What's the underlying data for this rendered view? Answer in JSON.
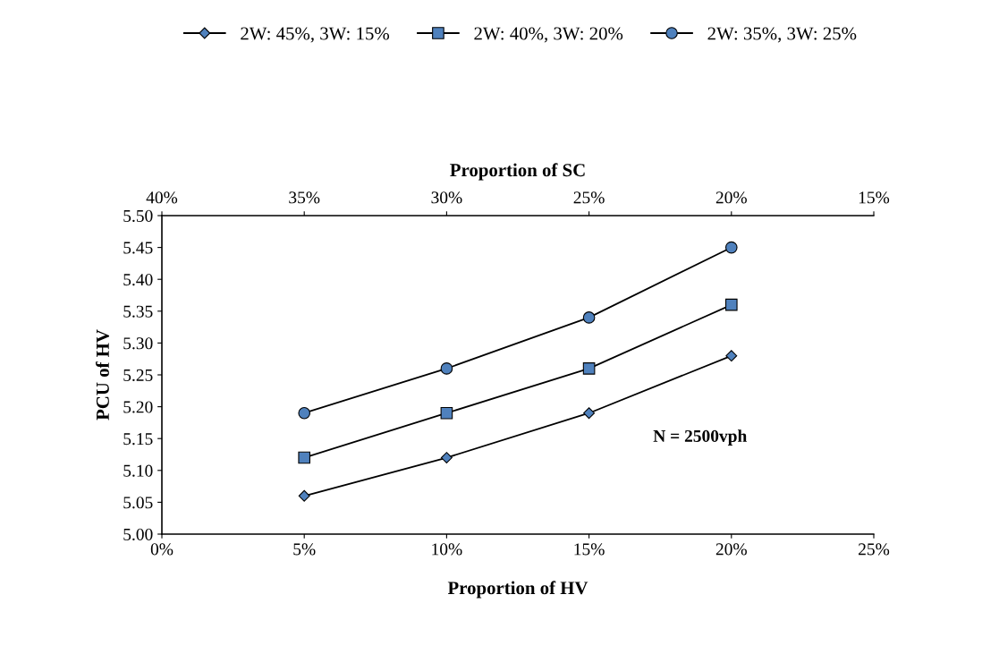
{
  "chart_data": {
    "type": "line",
    "xlabel": "Proportion of HV",
    "ylabel": "PCU of HV",
    "x2label": "Proportion of SC",
    "x": [
      5,
      10,
      15,
      20
    ],
    "series": [
      {
        "name": "2W: 45%, 3W: 15%",
        "color": "#4f81bd",
        "marker": "diamond",
        "values": [
          5.06,
          5.12,
          5.19,
          5.28
        ]
      },
      {
        "name": "2W: 40%, 3W: 20%",
        "color": "#4f81bd",
        "marker": "square",
        "values": [
          5.12,
          5.19,
          5.26,
          5.36
        ]
      },
      {
        "name": "2W: 35%, 3W: 25%",
        "color": "#4f81bd",
        "marker": "circle",
        "values": [
          5.19,
          5.26,
          5.34,
          5.45
        ]
      }
    ],
    "xlim": [
      0,
      25
    ],
    "xticks": [
      {
        "value": 0,
        "label": "0%"
      },
      {
        "value": 5,
        "label": "5%"
      },
      {
        "value": 10,
        "label": "10%"
      },
      {
        "value": 15,
        "label": "15%"
      },
      {
        "value": 20,
        "label": "20%"
      },
      {
        "value": 25,
        "label": "25%"
      }
    ],
    "x2lim": [
      40,
      15
    ],
    "x2ticks": [
      {
        "value": 40,
        "label": "40%"
      },
      {
        "value": 35,
        "label": "35%"
      },
      {
        "value": 30,
        "label": "30%"
      },
      {
        "value": 25,
        "label": "25%"
      },
      {
        "value": 20,
        "label": "20%"
      },
      {
        "value": 15,
        "label": "15%"
      }
    ],
    "ylim": [
      5.0,
      5.5
    ],
    "yticks": [
      {
        "value": 5.0,
        "label": "5.00"
      },
      {
        "value": 5.05,
        "label": "5.05"
      },
      {
        "value": 5.1,
        "label": "5.10"
      },
      {
        "value": 5.15,
        "label": "5.15"
      },
      {
        "value": 5.2,
        "label": "5.20"
      },
      {
        "value": 5.25,
        "label": "5.25"
      },
      {
        "value": 5.3,
        "label": "5.30"
      },
      {
        "value": 5.35,
        "label": "5.35"
      },
      {
        "value": 5.4,
        "label": "5.40"
      },
      {
        "value": 5.45,
        "label": "5.45"
      },
      {
        "value": 5.5,
        "label": "5.50"
      }
    ],
    "annotations": [
      "N = 2500vph"
    ],
    "grid": false,
    "legend": "top",
    "line_style": "solid"
  }
}
